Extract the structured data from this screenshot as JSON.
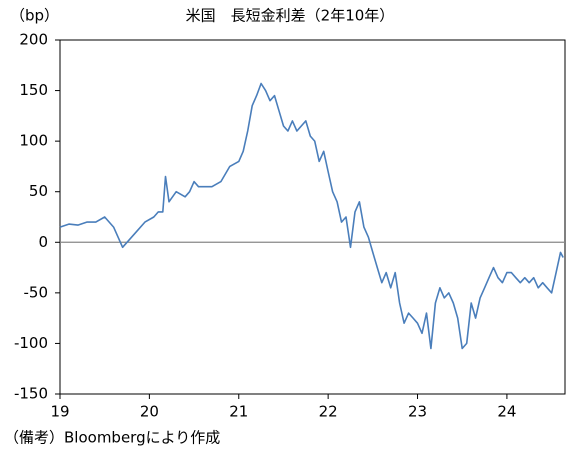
{
  "chart_data": {
    "type": "line",
    "title": "米国　長短金利差（2年10年）",
    "y_label": "（bp）",
    "note": "（備考）Bloombergにより作成",
    "x": [
      19.0,
      19.1,
      19.2,
      19.3,
      19.4,
      19.5,
      19.6,
      19.65,
      19.7,
      19.75,
      19.85,
      19.95,
      20.05,
      20.1,
      20.15,
      20.18,
      20.22,
      20.3,
      20.4,
      20.45,
      20.5,
      20.55,
      20.6,
      20.7,
      20.8,
      20.9,
      21.0,
      21.05,
      21.1,
      21.15,
      21.2,
      21.25,
      21.3,
      21.35,
      21.4,
      21.45,
      21.5,
      21.55,
      21.6,
      21.65,
      21.75,
      21.8,
      21.85,
      21.9,
      21.95,
      22.0,
      22.05,
      22.1,
      22.15,
      22.2,
      22.25,
      22.3,
      22.35,
      22.4,
      22.45,
      22.5,
      22.55,
      22.6,
      22.65,
      22.7,
      22.75,
      22.8,
      22.85,
      22.9,
      22.95,
      23.0,
      23.05,
      23.1,
      23.15,
      23.2,
      23.25,
      23.3,
      23.35,
      23.4,
      23.45,
      23.5,
      23.55,
      23.6,
      23.65,
      23.7,
      23.75,
      23.8,
      23.85,
      23.9,
      23.95,
      24.0,
      24.05,
      24.1,
      24.15,
      24.2,
      24.25,
      24.3,
      24.35,
      24.4,
      24.45,
      24.5,
      24.55,
      24.6,
      24.63
    ],
    "series": [
      {
        "name": "長短金利差",
        "color": "#4a7ebb",
        "values": [
          15,
          18,
          17,
          20,
          20,
          25,
          15,
          5,
          -5,
          0,
          10,
          20,
          25,
          30,
          30,
          65,
          40,
          50,
          45,
          50,
          60,
          55,
          55,
          55,
          60,
          75,
          80,
          90,
          110,
          135,
          145,
          157,
          150,
          140,
          145,
          130,
          115,
          110,
          120,
          110,
          120,
          105,
          100,
          80,
          90,
          70,
          50,
          40,
          20,
          25,
          -5,
          30,
          40,
          15,
          5,
          -10,
          -25,
          -40,
          -30,
          -45,
          -30,
          -60,
          -80,
          -70,
          -75,
          -80,
          -90,
          -70,
          -105,
          -60,
          -45,
          -55,
          -50,
          -60,
          -75,
          -105,
          -100,
          -60,
          -75,
          -55,
          -45,
          -35,
          -25,
          -35,
          -40,
          -30,
          -30,
          -35,
          -40,
          -35,
          -40,
          -35,
          -45,
          -40,
          -45,
          -50,
          -30,
          -10,
          -15
        ]
      }
    ],
    "xlim": [
      19,
      24.65
    ],
    "xticks": [
      19,
      20,
      21,
      22,
      23,
      24
    ],
    "ylim": [
      -150,
      200
    ],
    "yticks": [
      -150,
      -100,
      -50,
      0,
      50,
      100,
      150,
      200
    ]
  }
}
